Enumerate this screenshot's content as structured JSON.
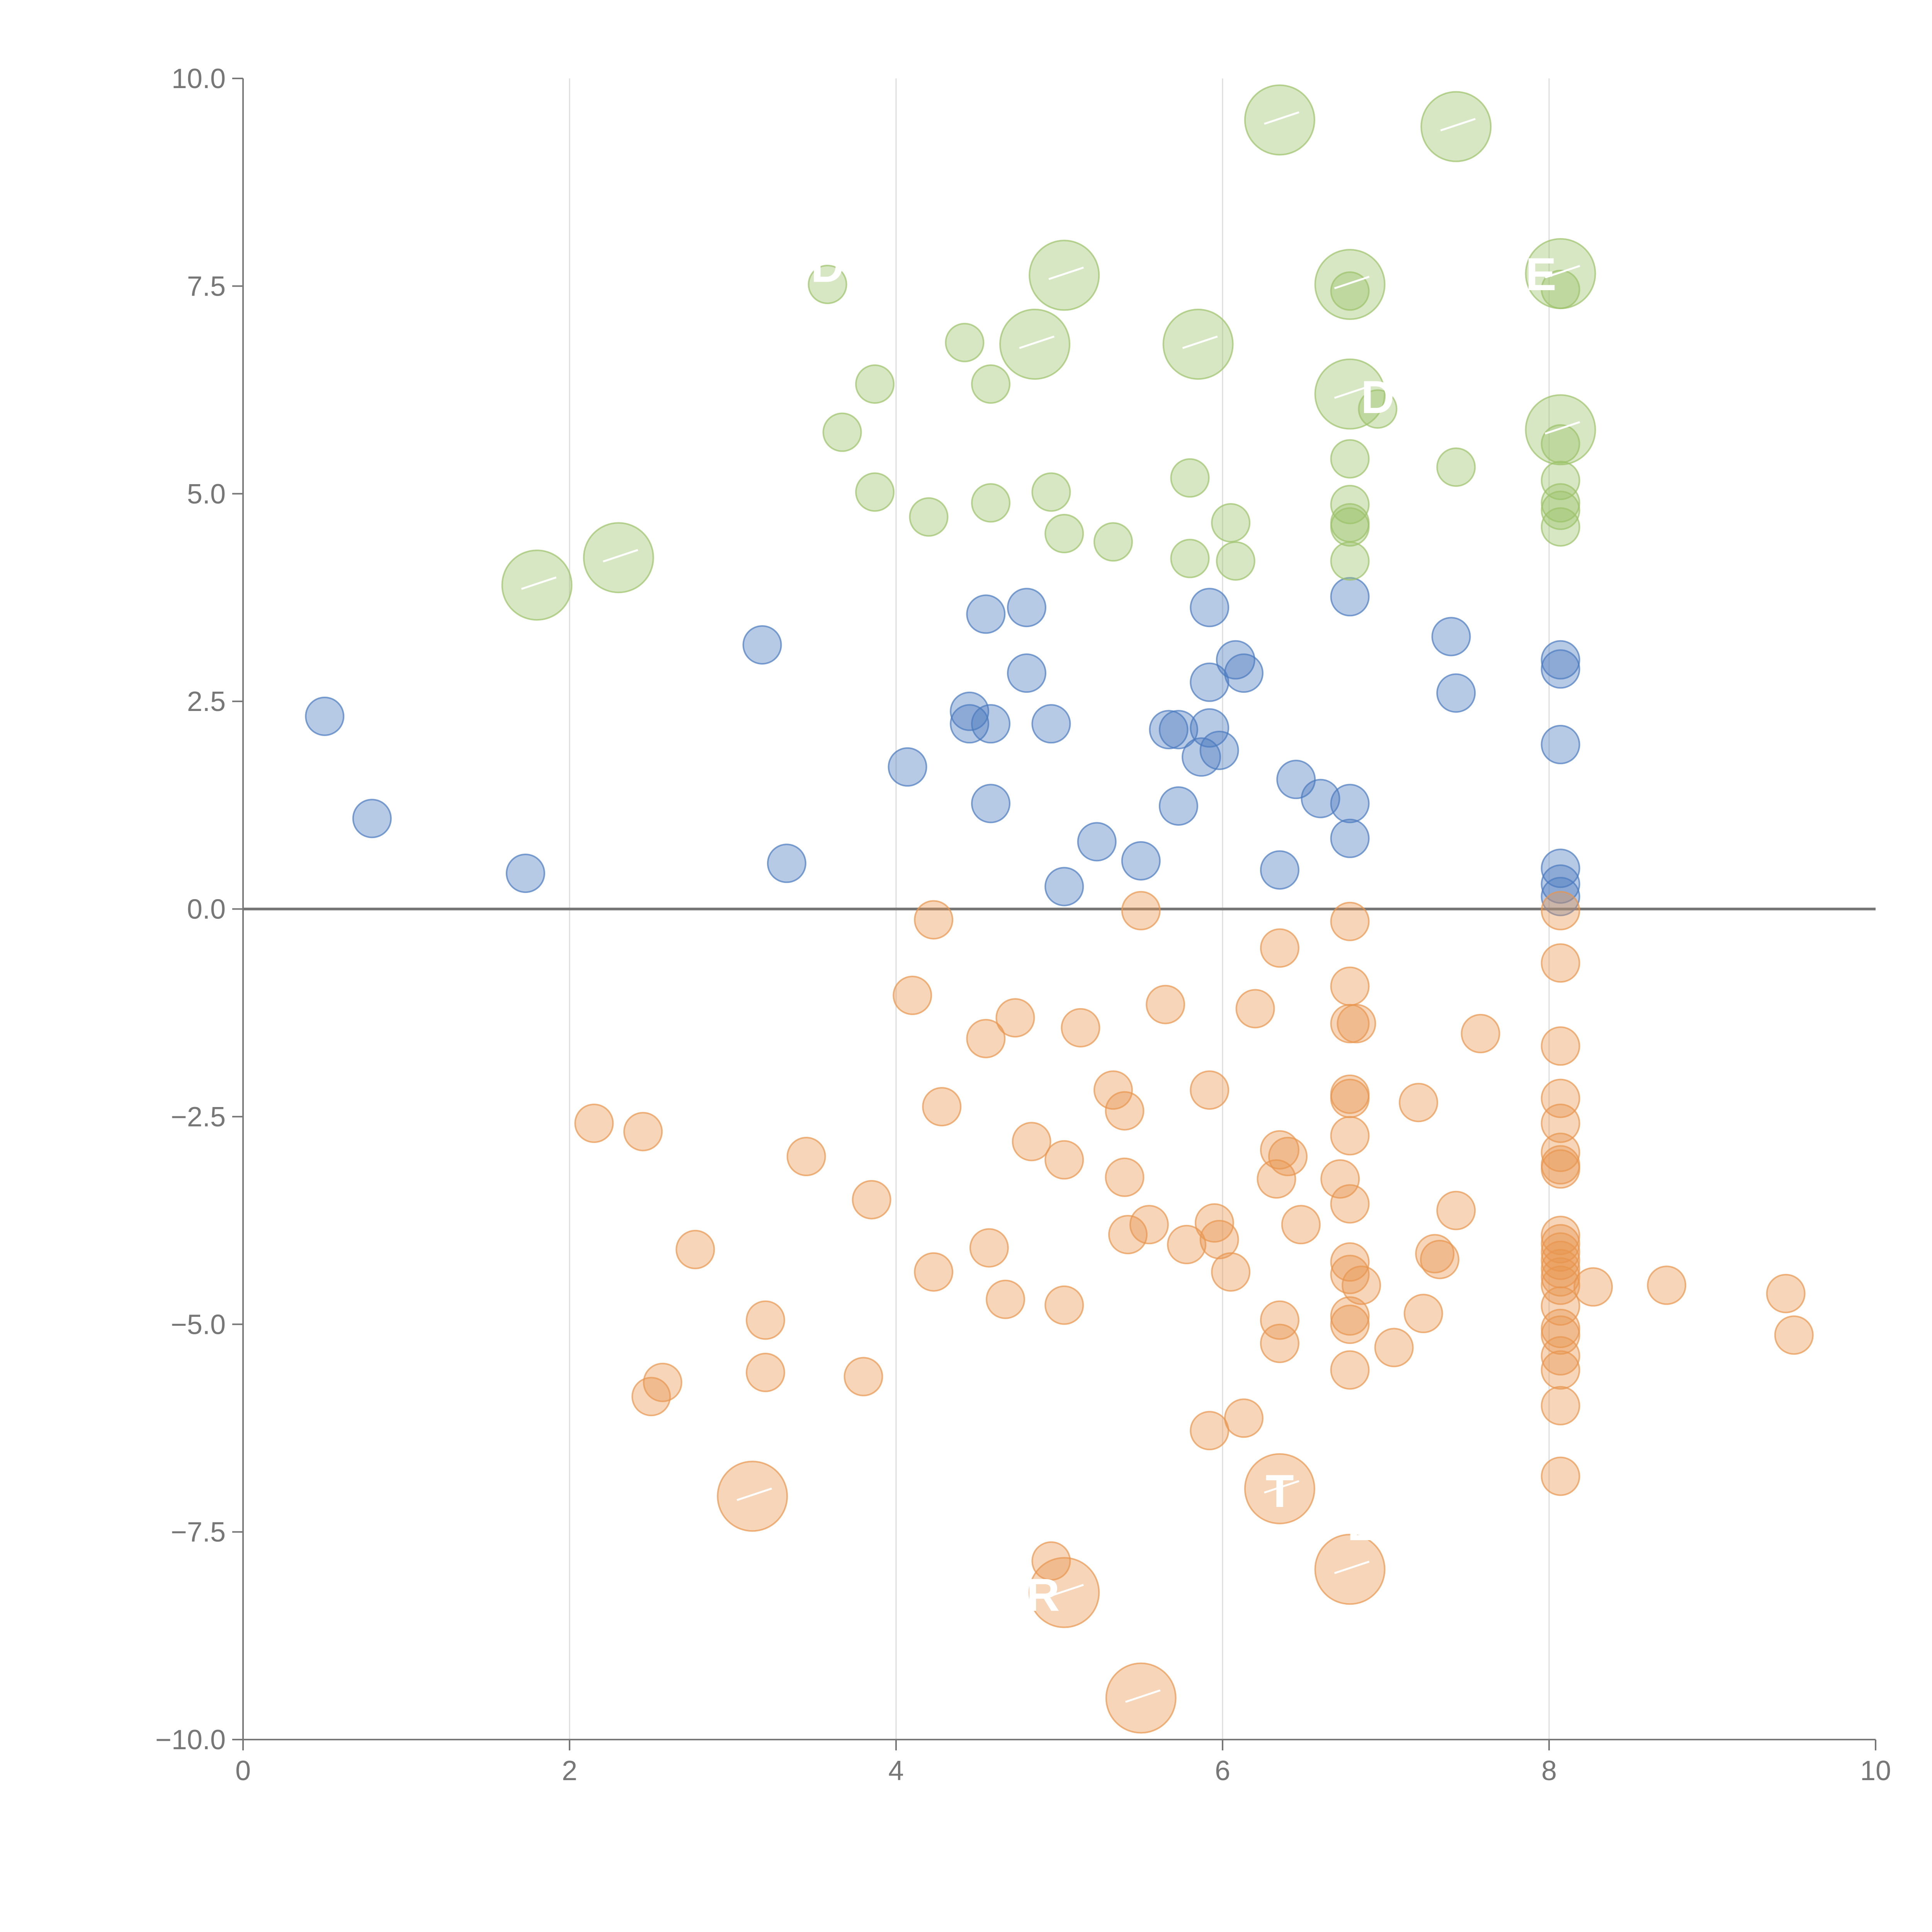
{
  "chart_data": {
    "type": "scatter",
    "title": "",
    "xlabel": "",
    "ylabel": "",
    "xlim": [
      0,
      10
    ],
    "ylim": [
      -10,
      10
    ],
    "x_ticks": [
      0,
      2,
      4,
      6,
      8,
      10
    ],
    "x_tick_labels": [
      "0",
      "2",
      "4",
      "6",
      "8",
      "10"
    ],
    "y_ticks": [
      10,
      7.5,
      5,
      2.5,
      0,
      -2.5,
      -5,
      -7.5,
      -10
    ],
    "y_tick_labels": [
      "10.0",
      "7.5",
      "5.0",
      "2.5",
      "0.0",
      "−2.5",
      "−5.0",
      "−7.5",
      "−10.0"
    ],
    "vertical_grid": true,
    "horizontal_reference_line": 0,
    "series": [
      {
        "name": "blue",
        "color": "#4a7bbf",
        "points": [
          [
            0.5,
            2.32
          ],
          [
            0.79,
            1.09
          ],
          [
            1.73,
            0.43
          ],
          [
            3.18,
            3.18
          ],
          [
            3.33,
            0.55
          ],
          [
            4.07,
            1.71
          ],
          [
            4.45,
            2.38
          ],
          [
            4.45,
            2.23
          ],
          [
            4.55,
            3.55
          ],
          [
            4.58,
            2.23
          ],
          [
            4.58,
            1.27
          ],
          [
            4.8,
            3.63
          ],
          [
            4.8,
            2.84
          ],
          [
            4.95,
            2.23
          ],
          [
            5.03,
            0.27
          ],
          [
            5.23,
            0.81
          ],
          [
            5.5,
            0.58
          ],
          [
            5.67,
            2.16
          ],
          [
            5.73,
            2.16
          ],
          [
            5.73,
            1.24
          ],
          [
            5.87,
            1.83
          ],
          [
            5.92,
            3.63
          ],
          [
            5.92,
            2.73
          ],
          [
            5.92,
            2.18
          ],
          [
            5.98,
            1.91
          ],
          [
            6.08,
            3.0
          ],
          [
            6.13,
            2.84
          ],
          [
            6.35,
            0.47
          ],
          [
            6.45,
            1.56
          ],
          [
            6.6,
            1.33
          ],
          [
            6.78,
            3.76
          ],
          [
            6.78,
            1.27
          ],
          [
            6.78,
            0.85
          ],
          [
            7.4,
            3.28
          ],
          [
            7.43,
            2.6
          ],
          [
            8.07,
            3.0
          ],
          [
            8.07,
            2.89
          ],
          [
            8.07,
            1.98
          ],
          [
            8.07,
            0.49
          ],
          [
            8.07,
            0.3
          ],
          [
            8.07,
            0.15
          ]
        ]
      },
      {
        "name": "green",
        "color": "#9cc26a",
        "points": [
          [
            3.58,
            7.52
          ],
          [
            3.67,
            5.74
          ],
          [
            3.87,
            6.32
          ],
          [
            3.87,
            5.02
          ],
          [
            4.2,
            4.72
          ],
          [
            4.42,
            6.82
          ],
          [
            4.58,
            6.32
          ],
          [
            4.58,
            4.89
          ],
          [
            4.95,
            5.02
          ],
          [
            5.03,
            4.52
          ],
          [
            5.33,
            4.42
          ],
          [
            5.8,
            5.19
          ],
          [
            5.8,
            4.22
          ],
          [
            6.05,
            4.65
          ],
          [
            6.08,
            4.19
          ],
          [
            6.78,
            7.44
          ],
          [
            6.78,
            5.42
          ],
          [
            6.78,
            4.87
          ],
          [
            6.78,
            4.65
          ],
          [
            6.78,
            4.6
          ],
          [
            6.78,
            4.19
          ],
          [
            6.95,
            6.02
          ],
          [
            7.43,
            5.32
          ],
          [
            8.07,
            7.46
          ],
          [
            8.07,
            5.6
          ],
          [
            8.07,
            5.16
          ],
          [
            8.07,
            4.89
          ],
          [
            8.07,
            4.8
          ],
          [
            8.07,
            4.6
          ]
        ]
      },
      {
        "name": "orange",
        "color": "#e8954f",
        "points": [
          [
            2.15,
            -2.58
          ],
          [
            2.45,
            -2.68
          ],
          [
            2.5,
            -5.87
          ],
          [
            2.57,
            -5.7
          ],
          [
            2.77,
            -4.1
          ],
          [
            3.2,
            -4.95
          ],
          [
            3.2,
            -5.58
          ],
          [
            3.45,
            -2.98
          ],
          [
            3.8,
            -5.63
          ],
          [
            3.85,
            -3.5
          ],
          [
            4.1,
            -1.04
          ],
          [
            4.23,
            -0.13
          ],
          [
            4.23,
            -4.37
          ],
          [
            4.28,
            -2.38
          ],
          [
            4.55,
            -1.56
          ],
          [
            4.57,
            -4.08
          ],
          [
            4.67,
            -4.7
          ],
          [
            4.73,
            -1.31
          ],
          [
            4.83,
            -2.8
          ],
          [
            4.95,
            -7.85
          ],
          [
            5.03,
            -3.02
          ],
          [
            5.03,
            -4.77
          ],
          [
            5.13,
            -1.43
          ],
          [
            5.33,
            -2.18
          ],
          [
            5.4,
            -2.43
          ],
          [
            5.4,
            -3.23
          ],
          [
            5.42,
            -3.92
          ],
          [
            5.5,
            -0.02
          ],
          [
            5.55,
            -3.8
          ],
          [
            5.65,
            -1.15
          ],
          [
            5.78,
            -4.04
          ],
          [
            5.92,
            -2.18
          ],
          [
            5.92,
            -6.28
          ],
          [
            5.95,
            -3.78
          ],
          [
            5.98,
            -3.98
          ],
          [
            6.05,
            -4.37
          ],
          [
            6.13,
            -6.13
          ],
          [
            6.2,
            -1.2
          ],
          [
            6.33,
            -3.25
          ],
          [
            6.35,
            -0.47
          ],
          [
            6.35,
            -2.9
          ],
          [
            6.35,
            -4.95
          ],
          [
            6.35,
            -5.23
          ],
          [
            6.4,
            -2.98
          ],
          [
            6.48,
            -3.8
          ],
          [
            6.72,
            -3.25
          ],
          [
            6.78,
            -0.15
          ],
          [
            6.78,
            -0.93
          ],
          [
            6.78,
            -1.38
          ],
          [
            6.82,
            -1.38
          ],
          [
            6.78,
            -2.23
          ],
          [
            6.78,
            -2.28
          ],
          [
            6.78,
            -2.73
          ],
          [
            6.78,
            -3.55
          ],
          [
            6.78,
            -4.25
          ],
          [
            6.78,
            -4.4
          ],
          [
            6.85,
            -4.53
          ],
          [
            6.78,
            -4.9
          ],
          [
            6.78,
            -5.0
          ],
          [
            6.78,
            -5.55
          ],
          [
            7.05,
            -5.28
          ],
          [
            7.2,
            -2.33
          ],
          [
            7.23,
            -4.87
          ],
          [
            7.3,
            -4.15
          ],
          [
            7.33,
            -4.22
          ],
          [
            7.43,
            -3.63
          ],
          [
            7.58,
            -1.5
          ],
          [
            8.07,
            -0.02
          ],
          [
            8.07,
            -0.65
          ],
          [
            8.07,
            -1.65
          ],
          [
            8.07,
            -2.28
          ],
          [
            8.07,
            -2.58
          ],
          [
            8.07,
            -2.93
          ],
          [
            8.07,
            -3.08
          ],
          [
            8.07,
            -3.13
          ],
          [
            8.07,
            -3.93
          ],
          [
            8.07,
            -4.03
          ],
          [
            8.07,
            -4.13
          ],
          [
            8.07,
            -4.23
          ],
          [
            8.07,
            -4.33
          ],
          [
            8.07,
            -4.43
          ],
          [
            8.07,
            -4.53
          ],
          [
            8.07,
            -4.78
          ],
          [
            8.07,
            -5.05
          ],
          [
            8.07,
            -5.13
          ],
          [
            8.07,
            -5.38
          ],
          [
            8.07,
            -5.55
          ],
          [
            8.07,
            -5.98
          ],
          [
            8.07,
            -6.83
          ],
          [
            8.27,
            -4.55
          ],
          [
            8.72,
            -4.53
          ],
          [
            9.45,
            -4.63
          ],
          [
            9.5,
            -5.13
          ]
        ]
      }
    ],
    "large_points": [
      {
        "x": 6.35,
        "y": 9.5,
        "color": "#9cc26a"
      },
      {
        "x": 7.43,
        "y": 9.42,
        "color": "#9cc26a"
      },
      {
        "x": 5.03,
        "y": 7.63,
        "color": "#9cc26a"
      },
      {
        "x": 6.78,
        "y": 7.52,
        "color": "#9cc26a"
      },
      {
        "x": 8.07,
        "y": 7.65,
        "color": "#9cc26a"
      },
      {
        "x": 4.85,
        "y": 6.8,
        "color": "#9cc26a"
      },
      {
        "x": 5.85,
        "y": 6.8,
        "color": "#9cc26a"
      },
      {
        "x": 6.78,
        "y": 6.2,
        "color": "#9cc26a"
      },
      {
        "x": 8.07,
        "y": 5.77,
        "color": "#9cc26a"
      },
      {
        "x": 1.8,
        "y": 3.9,
        "color": "#9cc26a"
      },
      {
        "x": 2.3,
        "y": 4.23,
        "color": "#9cc26a"
      },
      {
        "x": 3.12,
        "y": -7.07,
        "color": "#e8954f"
      },
      {
        "x": 6.35,
        "y": -6.98,
        "color": "#e8954f"
      },
      {
        "x": 6.78,
        "y": -7.95,
        "color": "#e8954f"
      },
      {
        "x": 5.03,
        "y": -8.23,
        "color": "#e8954f"
      },
      {
        "x": 5.5,
        "y": -9.5,
        "color": "#e8954f"
      }
    ],
    "annotations": [
      {
        "text": "D",
        "x": 3.58,
        "y": 7.55
      },
      {
        "text": "D",
        "x": 6.95,
        "y": 5.97
      },
      {
        "text": "E",
        "x": 7.95,
        "y": 7.45
      },
      {
        "text": "T",
        "x": 6.35,
        "y": -7.2
      },
      {
        "text": "L",
        "x": 6.85,
        "y": -7.6
      },
      {
        "text": "R",
        "x": 4.9,
        "y": -8.45
      }
    ]
  }
}
